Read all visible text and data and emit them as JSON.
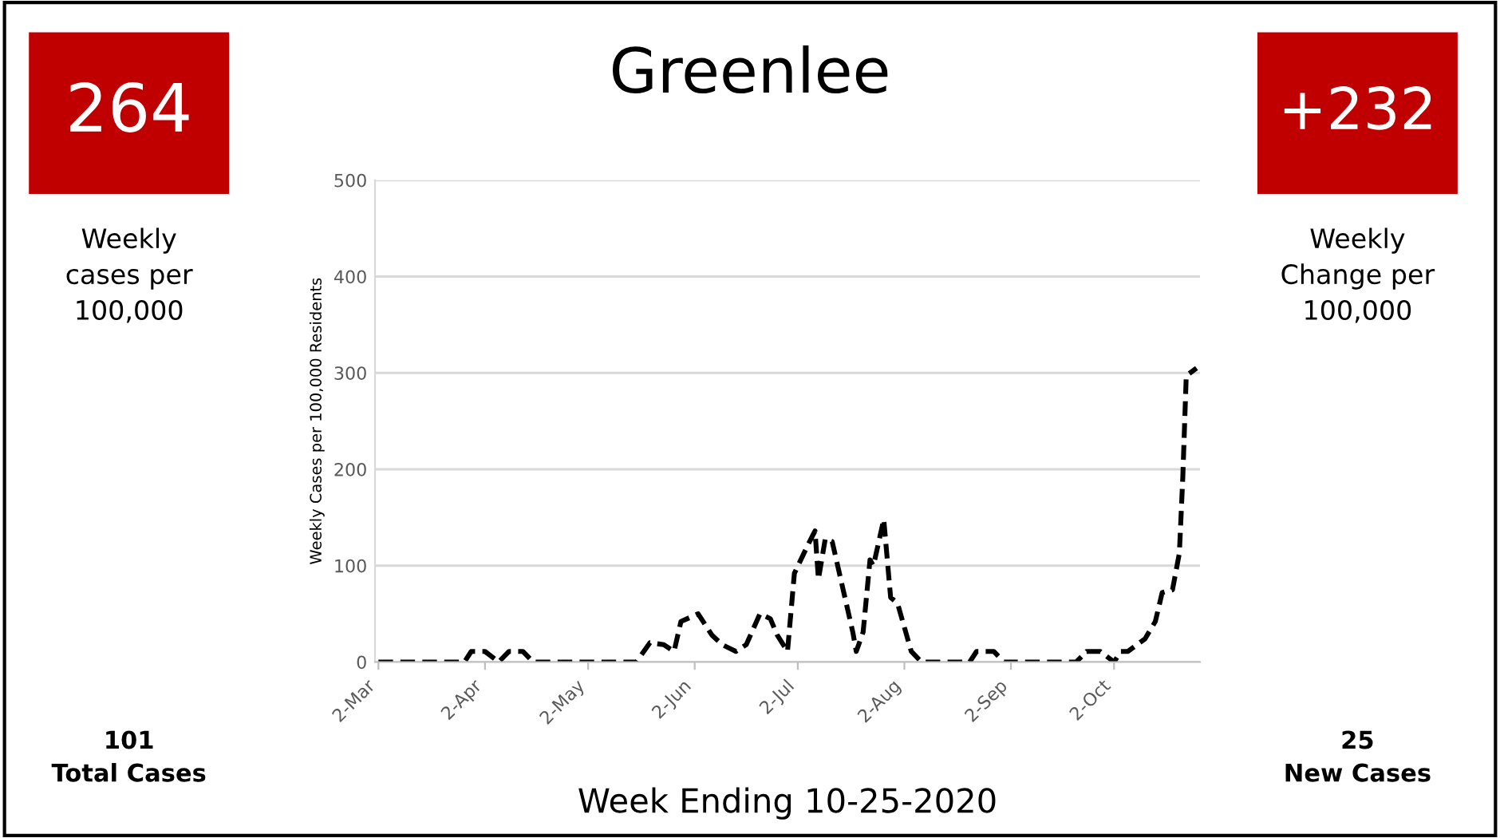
{
  "chart_data": {
    "type": "line",
    "title": "Greenlee",
    "xlabel": "Week Ending 10-25-2020",
    "ylabel": "Weekly Cases per 100,000 Residents",
    "x": [
      "2020-03-02",
      "2020-03-27",
      "2020-03-29",
      "2020-04-02",
      "2020-04-06",
      "2020-04-09",
      "2020-04-13",
      "2020-04-16",
      "2020-05-16",
      "2020-05-20",
      "2020-05-24",
      "2020-05-27",
      "2020-05-29",
      "2020-06-03",
      "2020-06-07",
      "2020-06-10",
      "2020-06-14",
      "2020-06-17",
      "2020-06-21",
      "2020-06-24",
      "2020-06-26",
      "2020-06-29",
      "2020-07-01",
      "2020-07-05",
      "2020-07-07",
      "2020-07-08",
      "2020-07-10",
      "2020-07-12",
      "2020-07-15",
      "2020-07-18",
      "2020-07-19",
      "2020-07-21",
      "2020-07-23",
      "2020-07-24",
      "2020-07-27",
      "2020-07-29",
      "2020-07-31",
      "2020-08-04",
      "2020-08-07",
      "2020-08-21",
      "2020-08-23",
      "2020-08-28",
      "2020-08-31",
      "2020-09-21",
      "2020-09-24",
      "2020-09-28",
      "2020-10-02",
      "2020-10-04",
      "2020-10-06",
      "2020-10-11",
      "2020-10-14",
      "2020-10-16",
      "2020-10-19",
      "2020-10-21",
      "2020-10-22",
      "2020-10-23",
      "2020-10-26"
    ],
    "series": [
      {
        "color": "#000000",
        "values": [
          0,
          0,
          11,
          11,
          0,
          11,
          11,
          0,
          0,
          20,
          18,
          11,
          42,
          50,
          28,
          18,
          11,
          18,
          50,
          45,
          28,
          11,
          92,
          122,
          136,
          86,
          128,
          125,
          78,
          31,
          11,
          31,
          106,
          100,
          148,
          67,
          61,
          11,
          0,
          0,
          11,
          11,
          0,
          0,
          11,
          11,
          0,
          11,
          11,
          24,
          42,
          72,
          75,
          113,
          192,
          297,
          305
        ]
      }
    ],
    "xlim": [
      "2020-03-01",
      "2020-10-27"
    ],
    "xticks": [
      {
        "value": "2020-03-02",
        "label": "2-Mar"
      },
      {
        "value": "2020-04-02",
        "label": "2-Apr"
      },
      {
        "value": "2020-05-02",
        "label": "2-May"
      },
      {
        "value": "2020-06-02",
        "label": "2-Jun"
      },
      {
        "value": "2020-07-02",
        "label": "2-Jul"
      },
      {
        "value": "2020-08-02",
        "label": "2-Aug"
      },
      {
        "value": "2020-09-02",
        "label": "2-Sep"
      },
      {
        "value": "2020-10-02",
        "label": "2-Oct"
      }
    ],
    "ylim": [
      0,
      500
    ],
    "yticks": [
      0,
      100,
      200,
      300,
      400,
      500
    ],
    "grid": "y",
    "legend": false,
    "marker": "none",
    "line_style": "dashed",
    "annotations": [
      "264",
      "Weekly\ncases per\n100,000",
      "101\nTotal Cases",
      "+232",
      "Weekly\nChange per\n100,000",
      "25\nNew Cases"
    ]
  }
}
